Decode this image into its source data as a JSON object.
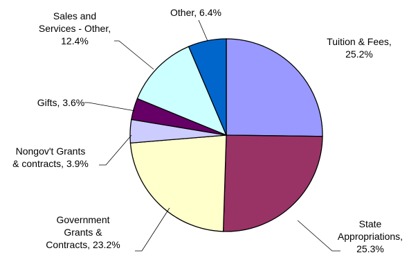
{
  "chart_data": {
    "type": "pie",
    "title": "",
    "slices": [
      {
        "name": "Tuition & Fees",
        "value": 25.2,
        "color": "#9999FF",
        "label_lines": [
          "Tuition & Fees,",
          "25.2%"
        ]
      },
      {
        "name": "State Appropriations",
        "value": 25.3,
        "color": "#993366",
        "label_lines": [
          "State",
          "Appropriations,",
          "25.3%"
        ]
      },
      {
        "name": "Government Grants & Contracts",
        "value": 23.2,
        "color": "#FFFFCC",
        "label_lines": [
          "Government",
          "Grants &",
          "Contracts, 23.2%"
        ]
      },
      {
        "name": "Nongov't Grants & contracts",
        "value": 3.9,
        "color": "#CCCCFF",
        "label_lines": [
          "Nongov't Grants",
          "& contracts, 3.9%"
        ]
      },
      {
        "name": "Gifts",
        "value": 3.6,
        "color": "#660066",
        "label_lines": [
          "Gifts, 3.6%"
        ]
      },
      {
        "name": "Sales and Services - Other",
        "value": 12.4,
        "color": "#CCFFFF",
        "label_lines": [
          "Sales and",
          "Services - Other,",
          "12.4%"
        ]
      },
      {
        "name": "Other",
        "value": 6.4,
        "color": "#0066CC",
        "label_lines": [
          "Other, 6.4%"
        ]
      }
    ]
  }
}
